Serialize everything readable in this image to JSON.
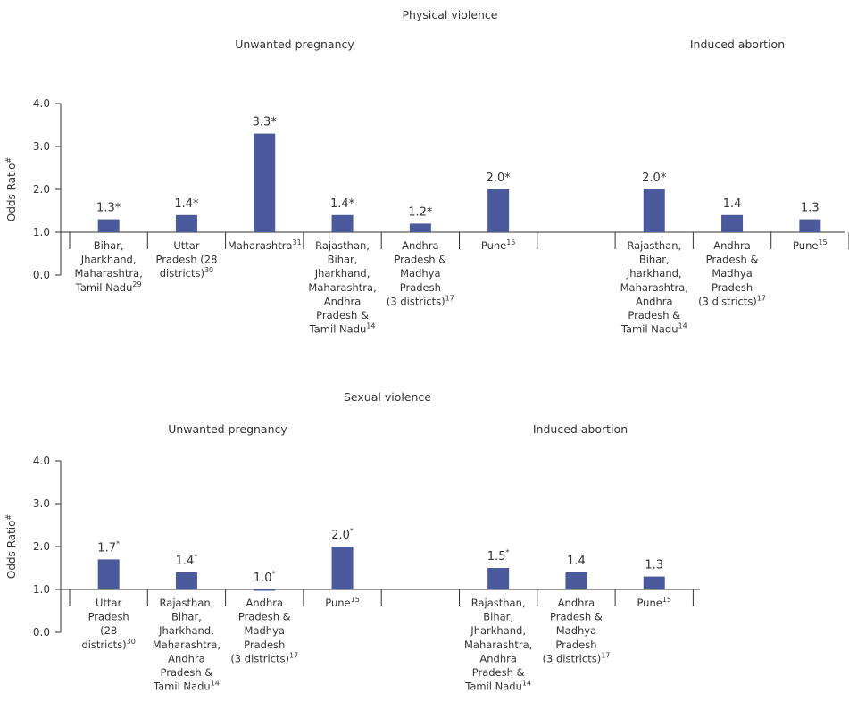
{
  "chart_data": [
    {
      "type": "bar",
      "title": "Physical violence",
      "ylabel": "Odds Ratio",
      "ylabel_sup": "#",
      "ylim": [
        0,
        4
      ],
      "yticks": [
        "0.0",
        "1.0",
        "2.0",
        "3.0",
        "4.0"
      ],
      "baseline": 1.0,
      "grid": false,
      "bar_color": "#4a5a9c",
      "groups": [
        {
          "label": "Unwanted pregnancy",
          "bars": [
            {
              "value": 1.3,
              "value_text": "1.3*",
              "category": [
                "Bihar,",
                "Jharkhand,",
                "Maharashtra,",
                "Tamil Nadu"
              ],
              "ref": "29"
            },
            {
              "value": 1.4,
              "value_text": "1.4*",
              "category": [
                "Uttar",
                "Pradesh (28",
                "districts)"
              ],
              "ref": "30"
            },
            {
              "value": 3.3,
              "value_text": "3.3*",
              "category": [
                "Maharashtra"
              ],
              "ref": "31"
            },
            {
              "value": 1.4,
              "value_text": "1.4*",
              "category": [
                "Rajasthan,",
                "Bihar,",
                "Jharkhand,",
                "Maharashtra,",
                "Andhra",
                "Pradesh &",
                "Tamil Nadu"
              ],
              "ref": "14"
            },
            {
              "value": 1.2,
              "value_text": "1.2*",
              "category": [
                "Andhra",
                "Pradesh &",
                "Madhya",
                "Pradesh",
                "(3 districts)"
              ],
              "ref": "17"
            },
            {
              "value": 2.0,
              "value_text": "2.0*",
              "category": [
                "Pune"
              ],
              "ref": "15"
            }
          ]
        },
        {
          "label": "Induced abortion",
          "bars": [
            {
              "value": 2.0,
              "value_text": "2.0*",
              "category": [
                "Rajasthan,",
                "Bihar,",
                "Jharkhand,",
                "Maharashtra,",
                "Andhra",
                "Pradesh &",
                "Tamil Nadu"
              ],
              "ref": "14"
            },
            {
              "value": 1.4,
              "value_text": "1.4",
              "category": [
                "Andhra",
                "Pradesh &",
                "Madhya",
                "Pradesh",
                "(3 districts)"
              ],
              "ref": "17"
            },
            {
              "value": 1.3,
              "value_text": "1.3",
              "category": [
                "Pune"
              ],
              "ref": "15"
            }
          ]
        }
      ]
    },
    {
      "type": "bar",
      "title": "Sexual violence",
      "ylabel": "Odds Ratio",
      "ylabel_sup": "#",
      "ylim": [
        0,
        4
      ],
      "yticks": [
        "0.0",
        "1.0",
        "2.0",
        "3.0",
        "4.0"
      ],
      "baseline": 1.0,
      "grid": false,
      "bar_color": "#4a5a9c",
      "groups": [
        {
          "label": "Unwanted pregnancy",
          "bars": [
            {
              "value": 1.7,
              "value_text": "1.7",
              "value_sup": "*",
              "category": [
                "Uttar",
                "Pradesh",
                "(28",
                "districts)"
              ],
              "ref": "30"
            },
            {
              "value": 1.4,
              "value_text": "1.4",
              "value_sup": "*",
              "category": [
                "Rajasthan,",
                "Bihar,",
                "Jharkhand,",
                "Maharashtra,",
                "Andhra",
                "Pradesh &",
                "Tamil Nadu"
              ],
              "ref": "14"
            },
            {
              "value": 1.0,
              "value_text": "1.0",
              "value_sup": "*",
              "category": [
                "Andhra",
                "Pradesh &",
                "Madhya",
                "Pradesh",
                "(3 districts)"
              ],
              "ref": "17"
            },
            {
              "value": 2.0,
              "value_text": "2.0",
              "value_sup": "*",
              "category": [
                "Pune"
              ],
              "ref": "15"
            }
          ]
        },
        {
          "label": "Induced abortion",
          "bars": [
            {
              "value": 1.5,
              "value_text": "1.5",
              "value_sup": "*",
              "category": [
                "Rajasthan,",
                "Bihar,",
                "Jharkhand,",
                "Maharashtra,",
                "Andhra",
                "Pradesh &",
                "Tamil Nadu"
              ],
              "ref": "14"
            },
            {
              "value": 1.4,
              "value_text": "1.4",
              "category": [
                "Andhra",
                "Pradesh &",
                "Madhya",
                "Pradesh",
                "(3 districts)"
              ],
              "ref": "17"
            },
            {
              "value": 1.3,
              "value_text": "1.3",
              "category": [
                "Pune"
              ],
              "ref": "15"
            }
          ]
        }
      ]
    }
  ]
}
